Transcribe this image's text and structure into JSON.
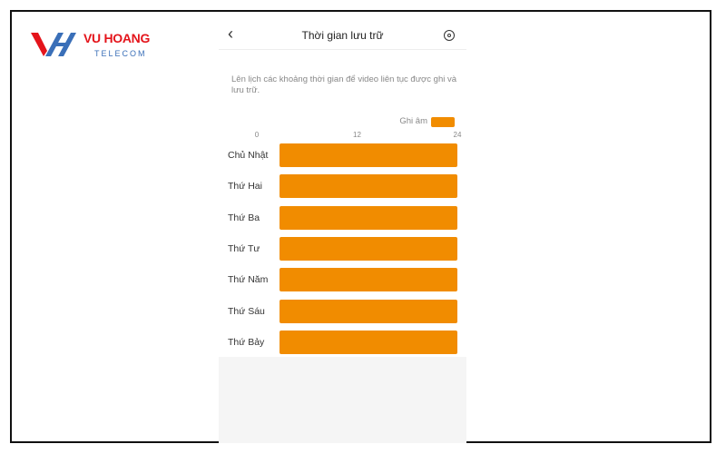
{
  "logo": {
    "name": "VU HOANG",
    "sub": "TELECOM"
  },
  "header": {
    "title": "Thời gian lưu trữ",
    "back_icon": "chevron-left-icon",
    "settings_icon": "gear-icon"
  },
  "description": "Lên lịch các khoảng thời gian để video liên tục được ghi và lưu trữ.",
  "colors": {
    "accent": "#f18c00"
  },
  "chart_data": {
    "type": "bar",
    "legend": "Ghi âm",
    "legend_placement": "top-right",
    "x_ticks": [
      "0",
      "12",
      "24"
    ],
    "xlim": [
      0,
      24
    ],
    "categories": [
      "Chủ Nhật",
      "Thứ Hai",
      "Thứ Ba",
      "Thứ Tư",
      "Thứ Năm",
      "Thứ Sáu",
      "Thứ Bảy"
    ],
    "ranges": [
      [
        0,
        24
      ],
      [
        0,
        24
      ],
      [
        0,
        24
      ],
      [
        0,
        24
      ],
      [
        0,
        24
      ],
      [
        0,
        24
      ],
      [
        0,
        24
      ]
    ]
  }
}
